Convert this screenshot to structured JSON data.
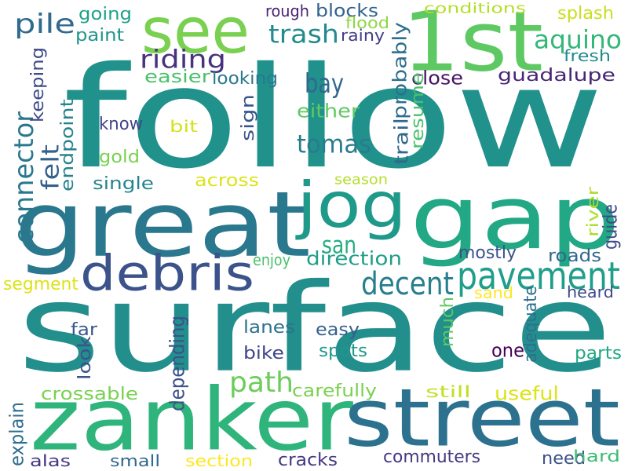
{
  "words": [
    {
      "text": "follow",
      "color": "#21918c",
      "vertical": false
    },
    {
      "text": "surface",
      "color": "#228f8d",
      "vertical": false
    },
    {
      "text": "great",
      "color": "#2a788e",
      "vertical": false
    },
    {
      "text": "gap",
      "color": "#22a884",
      "vertical": false
    },
    {
      "text": "1st",
      "color": "#5ec962",
      "vertical": false
    },
    {
      "text": "see",
      "color": "#7ad151",
      "vertical": false
    },
    {
      "text": "zanker",
      "color": "#2fb47c",
      "vertical": false
    },
    {
      "text": "street",
      "color": "#2c728e",
      "vertical": false
    },
    {
      "text": "jog",
      "color": "#1f9a8a",
      "vertical": false
    },
    {
      "text": "debris",
      "color": "#3b528b",
      "vertical": false
    },
    {
      "text": "pavement",
      "color": "#1f9e89",
      "vertical": false
    },
    {
      "text": "decent",
      "color": "#277f8e",
      "vertical": false
    },
    {
      "text": "path",
      "color": "#6ccd5a",
      "vertical": false
    },
    {
      "text": "trash",
      "color": "#238a8d",
      "vertical": false
    },
    {
      "text": "aquino",
      "color": "#35b779",
      "vertical": false
    },
    {
      "text": "riding",
      "color": "#46327e",
      "vertical": false
    },
    {
      "text": "bay",
      "color": "#31688e",
      "vertical": false
    },
    {
      "text": "tomas",
      "color": "#287c8e",
      "vertical": false
    },
    {
      "text": "san",
      "color": "#25ac82",
      "vertical": false
    },
    {
      "text": "pile",
      "color": "#306a8e",
      "vertical": false
    },
    {
      "text": "connector",
      "color": "#2a788e",
      "vertical": true
    },
    {
      "text": "felt",
      "color": "#355f8d",
      "vertical": true
    },
    {
      "text": "keeping",
      "color": "#3e4a89",
      "vertical": true
    },
    {
      "text": "endpoint",
      "color": "#26828e",
      "vertical": true
    },
    {
      "text": "going",
      "color": "#1fa188",
      "vertical": false
    },
    {
      "text": "paint",
      "color": "#1f958b",
      "vertical": false
    },
    {
      "text": "blocks",
      "color": "#33638d",
      "vertical": false
    },
    {
      "text": "rough",
      "color": "#482173",
      "vertical": false
    },
    {
      "text": "rainy",
      "color": "#433e85",
      "vertical": false
    },
    {
      "text": "flood",
      "color": "#8fd744",
      "vertical": false
    },
    {
      "text": "conditions",
      "color": "#b5de2b",
      "vertical": false
    },
    {
      "text": "splash",
      "color": "#c8e020",
      "vertical": false
    },
    {
      "text": "fresh",
      "color": "#238a8d",
      "vertical": false
    },
    {
      "text": "close",
      "color": "#471365",
      "vertical": false
    },
    {
      "text": "guadalupe",
      "color": "#482677",
      "vertical": false
    },
    {
      "text": "trail",
      "color": "#31688e",
      "vertical": true
    },
    {
      "text": "probably",
      "color": "#2e6e8e",
      "vertical": true
    },
    {
      "text": "resume",
      "color": "#4ac16d",
      "vertical": true
    },
    {
      "text": "easier",
      "color": "#4ac16d",
      "vertical": false
    },
    {
      "text": "looking",
      "color": "#2a788e",
      "vertical": false
    },
    {
      "text": "either",
      "color": "#5ec962",
      "vertical": false
    },
    {
      "text": "know",
      "color": "#414487",
      "vertical": false
    },
    {
      "text": "bit",
      "color": "#d2e21b",
      "vertical": false
    },
    {
      "text": "sign",
      "color": "#39568c",
      "vertical": true
    },
    {
      "text": "gold",
      "color": "#7ad151",
      "vertical": false
    },
    {
      "text": "single",
      "color": "#25848e",
      "vertical": false
    },
    {
      "text": "across",
      "color": "#dde318",
      "vertical": false
    },
    {
      "text": "season",
      "color": "#b5de2b",
      "vertical": false
    },
    {
      "text": "river",
      "color": "#b0dd2f",
      "vertical": true
    },
    {
      "text": "guide",
      "color": "#3e4a89",
      "vertical": true
    },
    {
      "text": "mostly",
      "color": "#3b528b",
      "vertical": false
    },
    {
      "text": "roads",
      "color": "#31688e",
      "vertical": false
    },
    {
      "text": "direction",
      "color": "#1f9e89",
      "vertical": false
    },
    {
      "text": "enjoy",
      "color": "#4ac16d",
      "vertical": false
    },
    {
      "text": "segment",
      "color": "#dde318",
      "vertical": false
    },
    {
      "text": "sand",
      "color": "#fde725",
      "vertical": false
    },
    {
      "text": "heard",
      "color": "#3e4a89",
      "vertical": false
    },
    {
      "text": "adequate",
      "color": "#2d708e",
      "vertical": true
    },
    {
      "text": "far",
      "color": "#39568c",
      "vertical": false
    },
    {
      "text": "lanes",
      "color": "#2c728e",
      "vertical": false
    },
    {
      "text": "easy",
      "color": "#35608d",
      "vertical": false
    },
    {
      "text": "much",
      "color": "#5ec962",
      "vertical": true
    },
    {
      "text": "look",
      "color": "#3b528b",
      "vertical": true
    },
    {
      "text": "depending",
      "color": "#3b528b",
      "vertical": true
    },
    {
      "text": "bike",
      "color": "#404688",
      "vertical": false
    },
    {
      "text": "spots",
      "color": "#1f988b",
      "vertical": false
    },
    {
      "text": "one",
      "color": "#440154",
      "vertical": false
    },
    {
      "text": "parts",
      "color": "#22a884",
      "vertical": false
    },
    {
      "text": "crossable",
      "color": "#7ad151",
      "vertical": false
    },
    {
      "text": "carefully",
      "color": "#7ad151",
      "vertical": false
    },
    {
      "text": "still",
      "color": "#c2df23",
      "vertical": false
    },
    {
      "text": "useful",
      "color": "#dde318",
      "vertical": false
    },
    {
      "text": "explain",
      "color": "#2e6e8e",
      "vertical": true
    },
    {
      "text": "commuters",
      "color": "#443a83",
      "vertical": false
    },
    {
      "text": "need",
      "color": "#3b528b",
      "vertical": false
    },
    {
      "text": "hard",
      "color": "#3dbc74",
      "vertical": false
    },
    {
      "text": "alas",
      "color": "#453781",
      "vertical": false
    },
    {
      "text": "small",
      "color": "#31688e",
      "vertical": false
    },
    {
      "text": "section",
      "color": "#fde725",
      "vertical": false
    },
    {
      "text": "cracks",
      "color": "#453781",
      "vertical": false
    }
  ]
}
